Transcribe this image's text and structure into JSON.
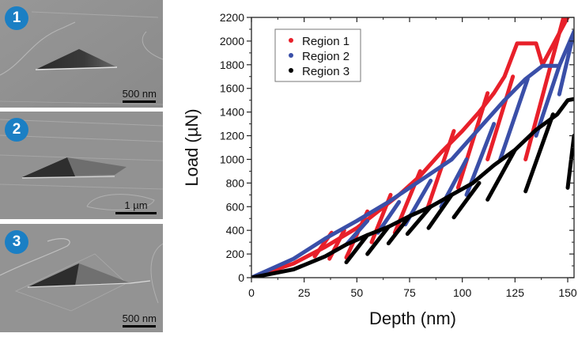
{
  "panels": [
    {
      "badge": "1",
      "scale_label": "500 nm"
    },
    {
      "badge": "2",
      "scale_label": "1 µm"
    },
    {
      "badge": "3",
      "scale_label": "500 nm"
    }
  ],
  "colors": {
    "badge": "#1b7fc4",
    "region1": "#e8202a",
    "region2": "#3a4fa8",
    "region3": "#000000"
  },
  "chart_data": {
    "type": "scatter",
    "title": "",
    "xlabel": "Depth (nm)",
    "ylabel": "Load (µN)",
    "xlim": [
      0,
      153
    ],
    "ylim": [
      0,
      2200
    ],
    "xticks": [
      0,
      25,
      50,
      75,
      100,
      125,
      150
    ],
    "yticks": [
      0,
      200,
      400,
      600,
      800,
      1000,
      1200,
      1400,
      1600,
      1800,
      2000,
      2200
    ],
    "grid": false,
    "legend_position": "top-left",
    "series": [
      {
        "name": "Region 1",
        "color": "#e8202a",
        "loading_envelope": [
          [
            0,
            0
          ],
          [
            20,
            120
          ],
          [
            35,
            260
          ],
          [
            50,
            420
          ],
          [
            60,
            560
          ],
          [
            70,
            700
          ],
          [
            80,
            860
          ],
          [
            90,
            1060
          ],
          [
            100,
            1240
          ],
          [
            108,
            1400
          ],
          [
            115,
            1560
          ],
          [
            120,
            1700
          ],
          [
            126,
            1980
          ],
          [
            135,
            1980
          ],
          [
            138,
            1800
          ],
          [
            150,
            2200
          ]
        ],
        "unload_segments": [
          [
            [
              30,
              180
            ],
            [
              38,
              380
            ]
          ],
          [
            [
              37,
              160
            ],
            [
              44,
              400
            ]
          ],
          [
            [
              45,
              170
            ],
            [
              55,
              560
            ]
          ],
          [
            [
              57,
              300
            ],
            [
              66,
              700
            ]
          ],
          [
            [
              68,
              380
            ],
            [
              80,
              900
            ]
          ],
          [
            [
              83,
              560
            ],
            [
              96,
              1240
            ]
          ],
          [
            [
              98,
              760
            ],
            [
              112,
              1560
            ]
          ],
          [
            [
              112,
              1000
            ],
            [
              124,
              1700
            ]
          ],
          [
            [
              130,
              1000
            ],
            [
              148,
              2200
            ]
          ]
        ]
      },
      {
        "name": "Region 2",
        "color": "#3a4fa8",
        "loading_envelope": [
          [
            0,
            0
          ],
          [
            20,
            160
          ],
          [
            35,
            330
          ],
          [
            50,
            480
          ],
          [
            65,
            640
          ],
          [
            80,
            820
          ],
          [
            95,
            1000
          ],
          [
            110,
            1300
          ],
          [
            120,
            1500
          ],
          [
            130,
            1680
          ],
          [
            138,
            1790
          ],
          [
            146,
            1790
          ],
          [
            153,
            2080
          ]
        ],
        "unload_segments": [
          [
            [
              45,
              280
            ],
            [
              55,
              480
            ]
          ],
          [
            [
              60,
              380
            ],
            [
              70,
              640
            ]
          ],
          [
            [
              73,
              450
            ],
            [
              85,
              820
            ]
          ],
          [
            [
              90,
              600
            ],
            [
              102,
              1000
            ]
          ],
          [
            [
              102,
              700
            ],
            [
              115,
              1300
            ]
          ],
          [
            [
              118,
              1000
            ],
            [
              131,
              1680
            ]
          ],
          [
            [
              135,
              1200
            ],
            [
              146,
              1790
            ]
          ],
          [
            [
              146,
              1550
            ],
            [
              153,
              2080
            ]
          ]
        ]
      },
      {
        "name": "Region 3",
        "color": "#000000",
        "loading_envelope": [
          [
            0,
            0
          ],
          [
            20,
            70
          ],
          [
            35,
            180
          ],
          [
            45,
            280
          ],
          [
            55,
            360
          ],
          [
            65,
            430
          ],
          [
            75,
            520
          ],
          [
            85,
            600
          ],
          [
            95,
            700
          ],
          [
            105,
            800
          ],
          [
            115,
            950
          ],
          [
            125,
            1080
          ],
          [
            135,
            1250
          ],
          [
            145,
            1380
          ],
          [
            150,
            1500
          ],
          [
            153,
            1510
          ]
        ],
        "unload_segments": [
          [
            [
              45,
              130
            ],
            [
              55,
              360
            ]
          ],
          [
            [
              55,
              200
            ],
            [
              65,
              430
            ]
          ],
          [
            [
              65,
              290
            ],
            [
              75,
              520
            ]
          ],
          [
            [
              74,
              370
            ],
            [
              85,
              600
            ]
          ],
          [
            [
              84,
              420
            ],
            [
              95,
              700
            ]
          ],
          [
            [
              96,
              510
            ],
            [
              108,
              800
            ]
          ],
          [
            [
              112,
              660
            ],
            [
              125,
              1080
            ]
          ],
          [
            [
              130,
              730
            ],
            [
              143,
              1380
            ]
          ],
          [
            [
              150,
              760
            ],
            [
              153,
              1200
            ]
          ]
        ]
      }
    ]
  }
}
